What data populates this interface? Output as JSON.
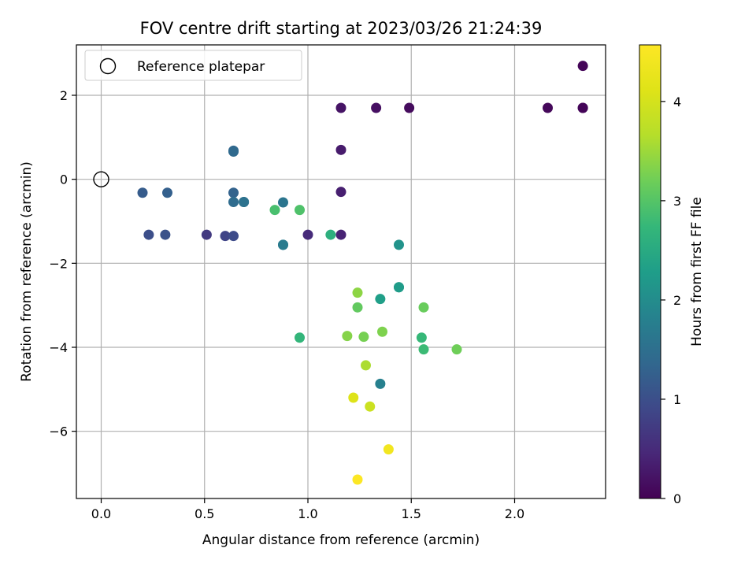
{
  "chart_data": {
    "type": "scatter",
    "title": "FOV centre drift starting at 2023/03/26 21:24:39",
    "xlabel": "Angular distance from reference (arcmin)",
    "ylabel": "Rotation from reference (arcmin)",
    "xlim": [
      -0.12,
      2.44
    ],
    "ylim": [
      -7.6,
      3.2
    ],
    "xticks": [
      0.0,
      0.5,
      1.0,
      1.5,
      2.0
    ],
    "xtick_labels": [
      "0.0",
      "0.5",
      "1.0",
      "1.5",
      "2.0"
    ],
    "yticks": [
      -6,
      -4,
      -2,
      0,
      2
    ],
    "ytick_labels": [
      "−6",
      "−4",
      "−2",
      "0",
      "2"
    ],
    "grid": true,
    "legend": {
      "position": "top-left",
      "entries": [
        "Reference platepar"
      ]
    },
    "reference_point": {
      "x": 0.0,
      "y": 0.0
    },
    "colorbar": {
      "label": "Hours from first FF file",
      "range": [
        0,
        4.57
      ],
      "ticks": [
        0,
        1,
        2,
        3,
        4
      ],
      "tick_labels": [
        "0",
        "1",
        "2",
        "3",
        "4"
      ],
      "colormap": "viridis"
    },
    "points": [
      {
        "x": 2.33,
        "y": 2.7,
        "c": 0.05
      },
      {
        "x": 2.33,
        "y": 1.7,
        "c": 0.05
      },
      {
        "x": 2.33,
        "y": 1.7,
        "c": 0.05
      },
      {
        "x": 2.16,
        "y": 1.7,
        "c": 0.08
      },
      {
        "x": 1.49,
        "y": 1.7,
        "c": 0.12
      },
      {
        "x": 1.33,
        "y": 1.7,
        "c": 0.18
      },
      {
        "x": 1.16,
        "y": 1.7,
        "c": 0.22
      },
      {
        "x": 1.16,
        "y": 0.7,
        "c": 0.3
      },
      {
        "x": 1.16,
        "y": -0.3,
        "c": 0.35
      },
      {
        "x": 1.16,
        "y": -1.32,
        "c": 0.4
      },
      {
        "x": 1.0,
        "y": -1.32,
        "c": 0.5
      },
      {
        "x": 0.51,
        "y": -1.32,
        "c": 0.7
      },
      {
        "x": 0.6,
        "y": -1.35,
        "c": 0.85
      },
      {
        "x": 0.64,
        "y": -1.35,
        "c": 0.95
      },
      {
        "x": 0.31,
        "y": -1.32,
        "c": 1.05
      },
      {
        "x": 0.23,
        "y": -1.32,
        "c": 1.0
      },
      {
        "x": 0.2,
        "y": -0.32,
        "c": 1.2
      },
      {
        "x": 0.32,
        "y": -0.32,
        "c": 1.25
      },
      {
        "x": 0.64,
        "y": -0.32,
        "c": 1.3
      },
      {
        "x": 0.64,
        "y": 0.68,
        "c": 1.35
      },
      {
        "x": 0.64,
        "y": 0.66,
        "c": 1.4
      },
      {
        "x": 0.64,
        "y": -0.54,
        "c": 1.45
      },
      {
        "x": 0.69,
        "y": -0.54,
        "c": 1.5
      },
      {
        "x": 0.69,
        "y": -0.54,
        "c": 1.55
      },
      {
        "x": 0.88,
        "y": -0.55,
        "c": 1.6
      },
      {
        "x": 0.88,
        "y": -1.56,
        "c": 1.65
      },
      {
        "x": 0.88,
        "y": -1.56,
        "c": 1.7
      },
      {
        "x": 1.35,
        "y": -4.87,
        "c": 1.8
      },
      {
        "x": 1.44,
        "y": -1.56,
        "c": 2.1
      },
      {
        "x": 1.44,
        "y": -2.57,
        "c": 2.2
      },
      {
        "x": 1.44,
        "y": -2.57,
        "c": 2.25
      },
      {
        "x": 1.35,
        "y": -2.85,
        "c": 2.3
      },
      {
        "x": 1.11,
        "y": -1.32,
        "c": 2.6
      },
      {
        "x": 0.96,
        "y": -3.77,
        "c": 2.7
      },
      {
        "x": 1.55,
        "y": -3.77,
        "c": 2.75
      },
      {
        "x": 1.56,
        "y": -4.05,
        "c": 2.8
      },
      {
        "x": 0.84,
        "y": -0.73,
        "c": 2.9
      },
      {
        "x": 0.96,
        "y": -0.73,
        "c": 2.95
      },
      {
        "x": 1.24,
        "y": -3.05,
        "c": 3.1
      },
      {
        "x": 1.56,
        "y": -3.05,
        "c": 3.15
      },
      {
        "x": 1.72,
        "y": -4.05,
        "c": 3.2
      },
      {
        "x": 1.27,
        "y": -3.75,
        "c": 3.25
      },
      {
        "x": 1.36,
        "y": -3.63,
        "c": 3.3
      },
      {
        "x": 1.19,
        "y": -3.73,
        "c": 3.35
      },
      {
        "x": 1.24,
        "y": -2.7,
        "c": 3.4
      },
      {
        "x": 1.28,
        "y": -4.43,
        "c": 3.6
      },
      {
        "x": 1.3,
        "y": -5.41,
        "c": 3.9
      },
      {
        "x": 1.22,
        "y": -5.2,
        "c": 4.1
      },
      {
        "x": 1.39,
        "y": -6.43,
        "c": 4.4
      },
      {
        "x": 1.24,
        "y": -7.15,
        "c": 4.55
      }
    ]
  }
}
